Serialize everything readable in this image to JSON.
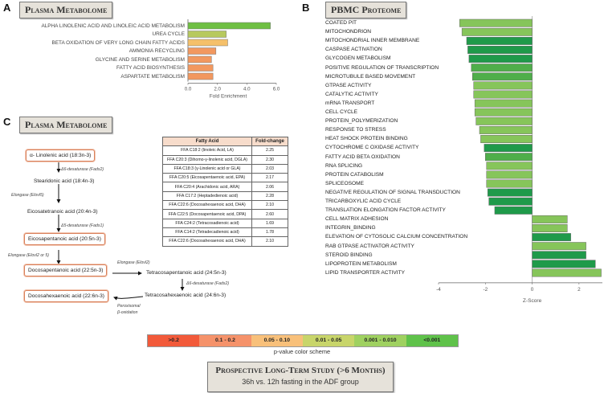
{
  "panels": {
    "a": {
      "letter": "A",
      "title": "Plasma Metabolome",
      "chart_data": {
        "type": "bar",
        "orientation": "horizontal",
        "categories": [
          "ALPHA LINOLENIC ACID AND LINOLEIC ACID METABOLISM",
          "UREA CYCLE",
          "BETA OXIDATION OF VERY LONG CHAIN FATTY ACIDS",
          "AMMONIA RECYCLING",
          "GLYCINE AND SERINE METABOLISM",
          "FATTY ACID BIOSYNTHESIS",
          "ASPARTATE METABOLISM"
        ],
        "values": [
          5.6,
          2.6,
          2.7,
          1.9,
          1.6,
          1.7,
          1.7
        ],
        "colors": [
          "#6fbf43",
          "#b7c95e",
          "#f5c06a",
          "#f2985f",
          "#f2985f",
          "#f2985f",
          "#f2985f"
        ],
        "xlim": [
          0,
          6
        ],
        "xticks": [
          "0.0",
          "2.0",
          "4.0",
          "6.0"
        ],
        "xlabel": "Fold Enrichment"
      }
    },
    "b": {
      "letter": "B",
      "title": "PBMC Proteome",
      "chart_data": {
        "type": "bar",
        "orientation": "horizontal",
        "categories": [
          "COATED PIT",
          "MITOCHONDRION",
          "MITOCHONDRIAL INNER MEMBRANE",
          "CASPASE ACTIVATION",
          "GLYCOGEN METABOLISM",
          "POSITIVE REGULATION OF TRANSCRIPTION",
          "MICROTUBULE BASED MOVEMENT",
          "GTPASE ACTIVITY",
          "CATALYTIC ACTIVITY",
          "mRNA TRANSPORT",
          "CELL CYCLE",
          "PROTEIN_POLYMERIZATION",
          "RESPONSE TO STRESS",
          "HEAT SHOCK PROTEIN BINDING",
          "CYTOCHROME C OXIDASE ACTIVITY",
          "FATTY ACID BETA OXIDATION",
          "RNA SPLICING",
          "PROTEIN CATABOLISM",
          "SPLICEOSOME",
          "NEGATIVE REGULATION OF SIGNAL TRANSDUCTION",
          "TRICARBOXYLIC ACID CYCLE",
          "TRANSLATION ELONGATION FACTOR ACTIVITY",
          "CELL MATRIX ADHESION",
          "INTEGRIN_BINDING",
          "ELEVATION OF CYTOSOLIC CALCIUM CONCENTRATION",
          "RAB GTPASE ACTIVATOR ACTIVITY",
          "STEROID BINDING",
          "LIPOPROTEIN METABOLISM",
          "LIPID TRANSPORTER ACTIVITY"
        ],
        "values": [
          -3.1,
          -3.0,
          -2.8,
          -2.75,
          -2.7,
          -2.6,
          -2.55,
          -2.5,
          -2.5,
          -2.45,
          -2.45,
          -2.4,
          -2.25,
          -2.2,
          -2.05,
          -2.0,
          -1.95,
          -1.95,
          -1.95,
          -1.9,
          -1.85,
          -1.6,
          1.5,
          1.5,
          1.65,
          2.3,
          2.3,
          2.7,
          2.95
        ],
        "colors": [
          "#86c55a",
          "#86c55a",
          "#1f9a4a",
          "#1f9a4a",
          "#1f9a4a",
          "#4fae4a",
          "#4fae4a",
          "#86c55a",
          "#86c55a",
          "#86c55a",
          "#86c55a",
          "#86c55a",
          "#86c55a",
          "#86c55a",
          "#1f9a4a",
          "#4fae4a",
          "#86c55a",
          "#86c55a",
          "#86c55a",
          "#1f9a4a",
          "#1f9a4a",
          "#1f9a4a",
          "#86c55a",
          "#86c55a",
          "#1f9a4a",
          "#86c55a",
          "#1f9a4a",
          "#1f9a4a",
          "#86c55a"
        ],
        "xlim": [
          -4,
          3
        ],
        "xticks": [
          "-4",
          "-2",
          "0",
          "2"
        ],
        "xlabel": "Z-Score"
      }
    },
    "c": {
      "letter": "C",
      "title": "Plasma Metabolome",
      "pathway": {
        "ala": "α- Linolenic acid (18:3n-3)",
        "sda": "Stearidonic acid (18:4n-3)",
        "eta": "Eicosatetranoic acid (20:4n-3)",
        "epa": "Eicosapentanoic acid (20:5n-3)",
        "dpa": "Docosapentanoic acid (22:5n-3)",
        "dha": "Docosahexaenoic acid (22:6n-3)",
        "tpa": "Tetracosapentanoic acid (24:5n-3)",
        "tha": "Tetracosahexaenoic acid (24:6n-3)",
        "enz_d6_1": "Δ6-desaturase (Fads2)",
        "enz_elovl5": "Elongase (Elovl5)",
        "enz_d5": "Δ5-desaturase (Fads1)",
        "enz_elovl25": "Elongase (Elovl2 or 5)",
        "enz_elovl2": "Elongase (Elovl2)",
        "enz_d6_2": "Δ6-desaturase (Fads2)",
        "perox1": "Peroxisomal",
        "perox2": "β-oxidation"
      },
      "table": {
        "headers": [
          "Fatty Acid",
          "Fold-change"
        ],
        "rows": [
          [
            "FFA C18:2 (linoleic Acid, LA)",
            "2.25"
          ],
          [
            "FFA C20:3 (Dihomo-γ-linolenic acid, DGLA)",
            "2.30"
          ],
          [
            "FFA C18:3 (γ-Linolenic acid or GLA)",
            "2.03"
          ],
          [
            "FFA C20:5 (Eicosapentaenoic acid, EPA)",
            "2.17"
          ],
          [
            "FFA C20:4 (Arachidonic acid, ARA)",
            "2.06"
          ],
          [
            "FFA C17:2 (Heptadedienoic acid)",
            "2.28"
          ],
          [
            "FFA C22:6 (Docosahexaenoic acid, DHA)",
            "2.10"
          ],
          [
            "FFA C22:5 (Docosapentaenoic acid, DPA)",
            "2.60"
          ],
          [
            "FFA C24:2 (Tetracosadienoic acid)",
            "1.69"
          ],
          [
            "FFA C14:2 (Tetradecadienoic acid)",
            "1.78"
          ],
          [
            "FFA C22:6 (Docosahexaenoic acid, DHA)",
            "2.10"
          ]
        ]
      }
    }
  },
  "legend": {
    "bins": [
      {
        "label": ">0.2",
        "color": "#f25a3a"
      },
      {
        "label": "0.1 - 0.2",
        "color": "#f5926a"
      },
      {
        "label": "0.05 - 0.10",
        "color": "#f8c07a"
      },
      {
        "label": "0.01 - 0.05",
        "color": "#c8d56a"
      },
      {
        "label": "0.001 - 0.010",
        "color": "#9fd160"
      },
      {
        "label": "<0.001",
        "color": "#5fc24a"
      }
    ],
    "caption": "p-value color scheme"
  },
  "study": {
    "title": "Prospective Long-Term Study (>6 Months)",
    "subtitle": "36h vs. 12h fasting in the ADF group"
  }
}
